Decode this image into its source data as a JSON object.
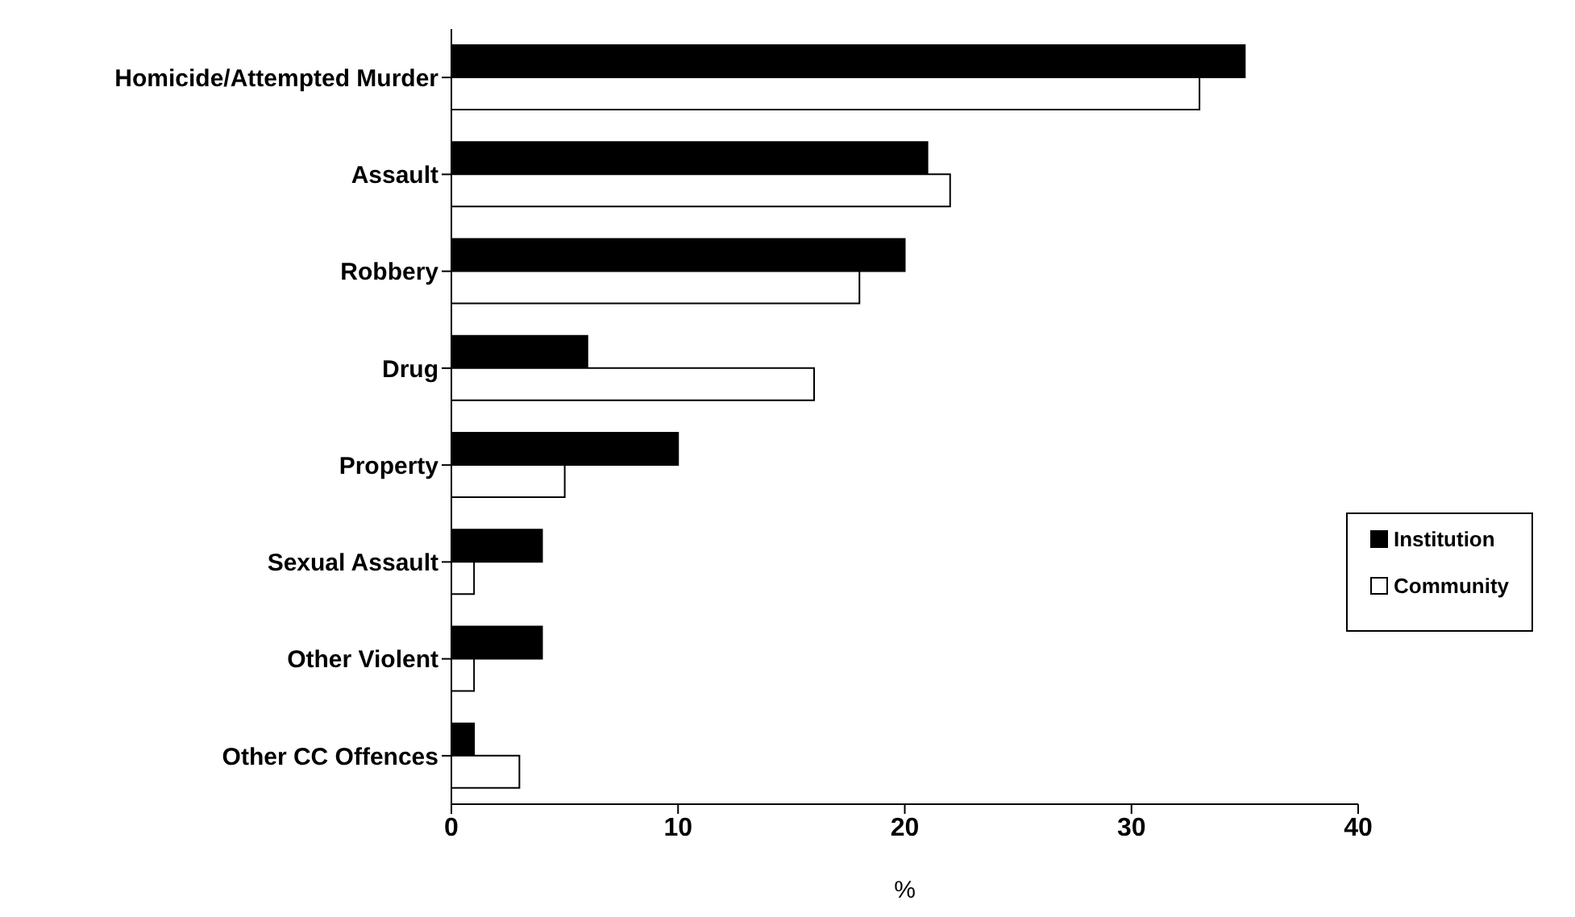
{
  "chart_data": {
    "type": "bar",
    "orientation": "horizontal",
    "xlabel": "%",
    "categories": [
      "Homicide/Attempted Murder",
      "Assault",
      "Robbery",
      "Drug",
      "Property",
      "Sexual Assault",
      "Other Violent",
      "Other CC Offences"
    ],
    "series": [
      {
        "name": "Institution",
        "color": "#000000",
        "values": [
          35,
          21,
          20,
          6,
          10,
          4,
          4,
          1
        ]
      },
      {
        "name": "Community",
        "color": "#ffffff",
        "values": [
          33,
          22,
          18,
          16,
          5,
          1,
          1,
          3
        ]
      }
    ],
    "xlim": [
      0,
      40
    ],
    "xticks": [
      0,
      10,
      20,
      30,
      40
    ],
    "grid": false,
    "legend": "right"
  }
}
